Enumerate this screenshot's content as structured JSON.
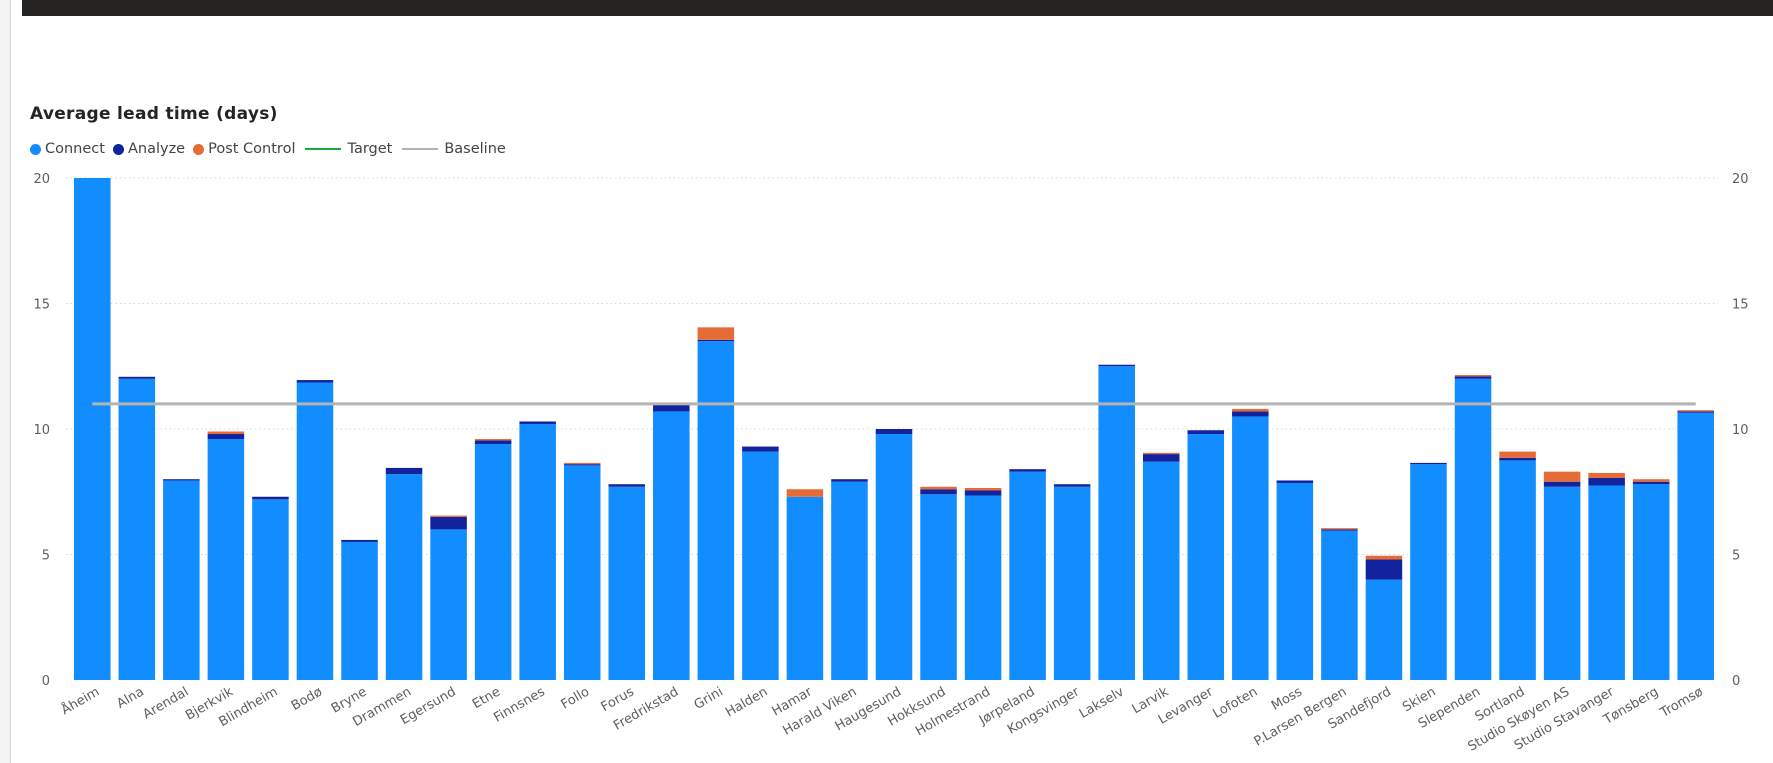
{
  "chart_data": {
    "type": "bar",
    "stacked": true,
    "title": "Average lead time (days)",
    "ylim": [
      0,
      20
    ],
    "yticks": [
      0,
      5,
      10,
      15,
      20
    ],
    "yticks_right": [
      0,
      5,
      10,
      15,
      20
    ],
    "grid": true,
    "legend_position": "top-left",
    "categories": [
      "Åheim",
      "Alna",
      "Arendal",
      "Bjerkvik",
      "Blindheim",
      "Bodø",
      "Bryne",
      "Drammen",
      "Egersund",
      "Etne",
      "Finnsnes",
      "Follo",
      "Forus",
      "Fredrikstad",
      "Grini",
      "Halden",
      "Hamar",
      "Harald Viken",
      "Haugesund",
      "Hokksund",
      "Holmestrand",
      "Jørpeland",
      "Kongsvinger",
      "Lakselv",
      "Larvik",
      "Levanger",
      "Lofoten",
      "Moss",
      "P.Larsen Bergen",
      "Sandefjord",
      "Skien",
      "Slependen",
      "Sortland",
      "Studio Skøyen AS",
      "Studio Stavanger",
      "Tønsberg",
      "Tromsø"
    ],
    "series": [
      {
        "name": "Connect",
        "color": "#118dff",
        "values": [
          20.0,
          12.0,
          7.95,
          9.6,
          7.2,
          11.85,
          5.5,
          8.2,
          6.0,
          9.4,
          10.2,
          8.55,
          7.7,
          10.7,
          13.5,
          9.1,
          7.3,
          7.9,
          9.8,
          7.4,
          7.35,
          8.3,
          7.7,
          12.5,
          8.7,
          9.8,
          10.5,
          7.85,
          5.95,
          4.0,
          8.6,
          12.0,
          8.75,
          7.7,
          7.75,
          7.8,
          10.65
        ]
      },
      {
        "name": "Analyze",
        "color": "#12239e",
        "values": [
          0,
          0.08,
          0.05,
          0.2,
          0.1,
          0.1,
          0.08,
          0.25,
          0.5,
          0.15,
          0.1,
          0.05,
          0.1,
          0.3,
          0.05,
          0.2,
          0,
          0.1,
          0.2,
          0.2,
          0.2,
          0.1,
          0.1,
          0.06,
          0.3,
          0.15,
          0.2,
          0.1,
          0.05,
          0.8,
          0.05,
          0.1,
          0.1,
          0.2,
          0.3,
          0.1,
          0.05
        ]
      },
      {
        "name": "Post Control",
        "color": "#e66c37",
        "values": [
          0,
          0,
          0,
          0.1,
          0,
          0,
          0,
          0,
          0.05,
          0.05,
          0,
          0.05,
          0,
          0,
          0.5,
          0,
          0.3,
          0,
          0,
          0.1,
          0.1,
          0,
          0,
          0,
          0.05,
          0,
          0.1,
          0,
          0.05,
          0.15,
          0,
          0.05,
          0.25,
          0.4,
          0.2,
          0.1,
          0.05
        ]
      }
    ],
    "lines": [
      {
        "name": "Target",
        "color": "#1aab40",
        "values": []
      },
      {
        "name": "Baseline",
        "color": "#b3b3b3",
        "value": 11.0
      }
    ]
  }
}
